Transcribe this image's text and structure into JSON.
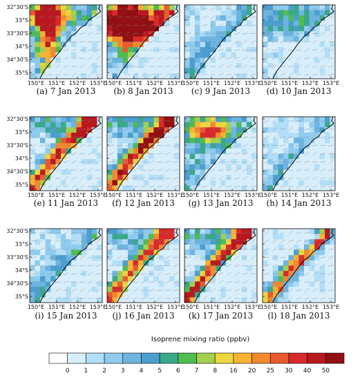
{
  "chart_data": {
    "type": "heatmap",
    "panel_grid": {
      "rows": 3,
      "cols": 4
    },
    "x_tick_labels": [
      "150°E",
      "151°E",
      "152°E",
      "153°E"
    ],
    "y_tick_labels": [
      "32°30'S",
      "33°S",
      "33°30'S",
      "34°S",
      "34°30'S",
      "35°S"
    ],
    "x_range_deg": [
      149.7,
      153.2
    ],
    "y_range_deg": [
      -35.5,
      -32.5
    ],
    "panels": [
      {
        "caption": "(a) 7 Jan 2013",
        "intensity_level": 0.85,
        "plume": "inland-south"
      },
      {
        "caption": "(b) 8 Jan 2013",
        "intensity_level": 1.0,
        "plume": "inland-north"
      },
      {
        "caption": "(c) 9 Jan 2013",
        "intensity_level": 0.35,
        "plume": "weak"
      },
      {
        "caption": "(d) 10 Jan 2013",
        "intensity_level": 0.35,
        "plume": "weak-north"
      },
      {
        "caption": "(e) 11 Jan 2013",
        "intensity_level": 0.9,
        "plume": "coastal"
      },
      {
        "caption": "(f) 12 Jan 2013",
        "intensity_level": 0.95,
        "plume": "coastal"
      },
      {
        "caption": "(g) 13 Jan 2013",
        "intensity_level": 0.7,
        "plume": "northwest"
      },
      {
        "caption": "(h) 14 Jan 2013",
        "intensity_level": 0.2,
        "plume": "weak"
      },
      {
        "caption": "(i) 15 Jan 2013",
        "intensity_level": 0.4,
        "plume": "weak"
      },
      {
        "caption": "(j) 16 Jan 2013",
        "intensity_level": 0.75,
        "plume": "coastal"
      },
      {
        "caption": "(k) 17 Jan 2013",
        "intensity_level": 0.9,
        "plume": "coastal"
      },
      {
        "caption": "(l) 18 Jan 2013",
        "intensity_level": 0.85,
        "plume": "coastal-offshore"
      }
    ],
    "colorbar": {
      "title": "Isoprene mixing ratio  (ppbv)",
      "tick_labels": [
        "0",
        "1",
        "2",
        "3",
        "4",
        "5",
        "6",
        "7",
        "8",
        "16",
        "20",
        "25",
        "30",
        "40",
        "50"
      ],
      "colors": [
        "#ffffff",
        "#d8eefa",
        "#b2def7",
        "#8fcbee",
        "#6db4e0",
        "#4b9fcf",
        "#3aa889",
        "#4fbd4f",
        "#a3d04e",
        "#ecd641",
        "#f8b233",
        "#f2892f",
        "#ea5a2f",
        "#d82a2b",
        "#b8191f",
        "#921013"
      ]
    }
  }
}
